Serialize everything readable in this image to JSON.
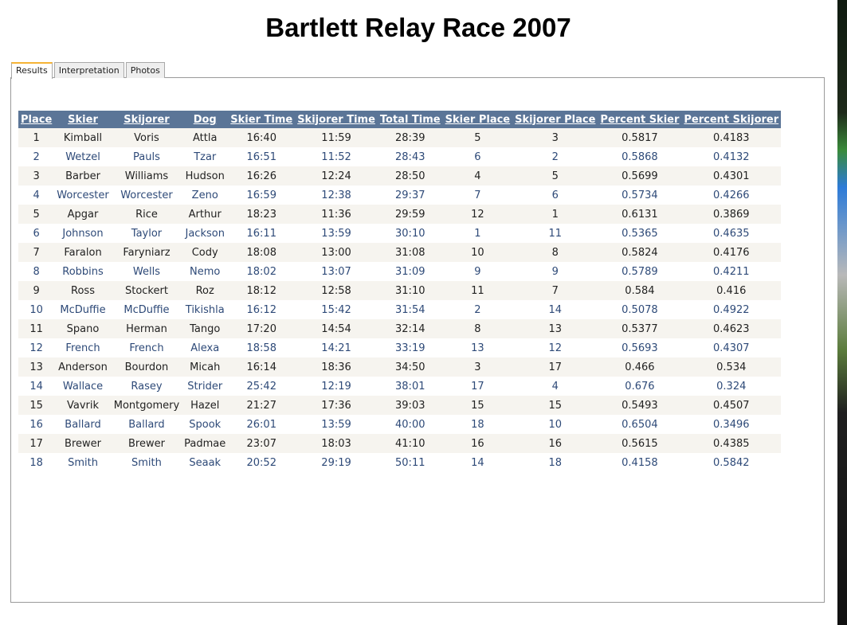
{
  "page": {
    "title": "Bartlett Relay Race 2007"
  },
  "tabs": [
    {
      "label": "Results",
      "active": true
    },
    {
      "label": "Interpretation",
      "active": false
    },
    {
      "label": "Photos",
      "active": false
    }
  ],
  "table": {
    "headers": [
      "Place",
      "Skier",
      "Skijorer",
      "Dog",
      "Skier Time",
      "Skijorer Time",
      "Total Time",
      "Skier Place",
      "Skijorer Place",
      "Percent Skier",
      "Percent Skijorer"
    ],
    "rows": [
      [
        "1",
        "Kimball",
        "Voris",
        "Attla",
        "16:40",
        "11:59",
        "28:39",
        "5",
        "3",
        "0.5817",
        "0.4183"
      ],
      [
        "2",
        "Wetzel",
        "Pauls",
        "Tzar",
        "16:51",
        "11:52",
        "28:43",
        "6",
        "2",
        "0.5868",
        "0.4132"
      ],
      [
        "3",
        "Barber",
        "Williams",
        "Hudson",
        "16:26",
        "12:24",
        "28:50",
        "4",
        "5",
        "0.5699",
        "0.4301"
      ],
      [
        "4",
        "Worcester",
        "Worcester",
        "Zeno",
        "16:59",
        "12:38",
        "29:37",
        "7",
        "6",
        "0.5734",
        "0.4266"
      ],
      [
        "5",
        "Apgar",
        "Rice",
        "Arthur",
        "18:23",
        "11:36",
        "29:59",
        "12",
        "1",
        "0.6131",
        "0.3869"
      ],
      [
        "6",
        "Johnson",
        "Taylor",
        "Jackson",
        "16:11",
        "13:59",
        "30:10",
        "1",
        "11",
        "0.5365",
        "0.4635"
      ],
      [
        "7",
        "Faralon",
        "Faryniarz",
        "Cody",
        "18:08",
        "13:00",
        "31:08",
        "10",
        "8",
        "0.5824",
        "0.4176"
      ],
      [
        "8",
        "Robbins",
        "Wells",
        "Nemo",
        "18:02",
        "13:07",
        "31:09",
        "9",
        "9",
        "0.5789",
        "0.4211"
      ],
      [
        "9",
        "Ross",
        "Stockert",
        "Roz",
        "18:12",
        "12:58",
        "31:10",
        "11",
        "7",
        "0.584",
        "0.416"
      ],
      [
        "10",
        "McDuffie",
        "McDuffie",
        "Tikishla",
        "16:12",
        "15:42",
        "31:54",
        "2",
        "14",
        "0.5078",
        "0.4922"
      ],
      [
        "11",
        "Spano",
        "Herman",
        "Tango",
        "17:20",
        "14:54",
        "32:14",
        "8",
        "13",
        "0.5377",
        "0.4623"
      ],
      [
        "12",
        "French",
        "French",
        "Alexa",
        "18:58",
        "14:21",
        "33:19",
        "13",
        "12",
        "0.5693",
        "0.4307"
      ],
      [
        "13",
        "Anderson",
        "Bourdon",
        "Micah",
        "16:14",
        "18:36",
        "34:50",
        "3",
        "17",
        "0.466",
        "0.534"
      ],
      [
        "14",
        "Wallace",
        "Rasey",
        "Strider",
        "25:42",
        "12:19",
        "38:01",
        "17",
        "4",
        "0.676",
        "0.324"
      ],
      [
        "15",
        "Vavrik",
        "Montgomery",
        "Hazel",
        "21:27",
        "17:36",
        "39:03",
        "15",
        "15",
        "0.5493",
        "0.4507"
      ],
      [
        "16",
        "Ballard",
        "Ballard",
        "Spook",
        "26:01",
        "13:59",
        "40:00",
        "18",
        "10",
        "0.6504",
        "0.3496"
      ],
      [
        "17",
        "Brewer",
        "Brewer",
        "Padmae",
        "23:07",
        "18:03",
        "41:10",
        "16",
        "16",
        "0.5615",
        "0.4385"
      ],
      [
        "18",
        "Smith",
        "Smith",
        "Seaak",
        "20:52",
        "29:19",
        "50:11",
        "14",
        "18",
        "0.4158",
        "0.5842"
      ]
    ]
  },
  "colors": {
    "header_bg": "#5b7597",
    "odd_row_bg": "#f6f4ef",
    "even_row_text": "#2e4a78",
    "active_tab_accent": "#f5b335"
  }
}
